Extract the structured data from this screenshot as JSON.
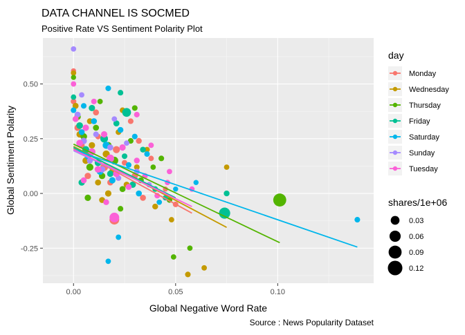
{
  "chart_data": {
    "type": "scatter",
    "title": "DATA CHANNEL IS SOCMED",
    "subtitle": "Positive Rate VS Sentiment Polarity Plot",
    "xlabel": "Global Negative Word Rate",
    "ylabel": "Global Sentiment Polarity",
    "caption": "Source : News Popularity Dataset",
    "xlim": [
      -0.015,
      0.147
    ],
    "ylim": [
      -0.41,
      0.71
    ],
    "x_ticks": [
      0.0,
      0.05,
      0.1
    ],
    "x_tick_labels": [
      "0.00",
      "0.05",
      "0.10"
    ],
    "y_ticks": [
      -0.25,
      0.0,
      0.25,
      0.5
    ],
    "y_tick_labels": [
      "-0.25",
      "0.00",
      "0.25",
      "0.50"
    ],
    "grid": true,
    "legend_position": "right",
    "color_legend": {
      "title": "day",
      "entries": [
        {
          "label": "Monday",
          "color": "#F8766D"
        },
        {
          "label": "Wednesday",
          "color": "#C49A00"
        },
        {
          "label": "Thursday",
          "color": "#53B400"
        },
        {
          "label": "Friday",
          "color": "#00C094"
        },
        {
          "label": "Saturday",
          "color": "#00B6EB"
        },
        {
          "label": "Sunday",
          "color": "#A58AFF"
        },
        {
          "label": "Tuesday",
          "color": "#FB61D7"
        }
      ]
    },
    "size_legend": {
      "title": "shares/1e+06",
      "entries": [
        {
          "label": "0.03",
          "value": 0.03
        },
        {
          "label": "0.06",
          "value": 0.06
        },
        {
          "label": "0.09",
          "value": 0.09
        },
        {
          "label": "0.12",
          "value": 0.12
        }
      ]
    },
    "trend_lines": [
      {
        "day": "Monday",
        "x": [
          0.0,
          0.058
        ],
        "y": [
          0.205,
          -0.09
        ]
      },
      {
        "day": "Wednesday",
        "x": [
          0.0,
          0.075
        ],
        "y": [
          0.215,
          -0.155
        ]
      },
      {
        "day": "Thursday",
        "x": [
          0.0,
          0.101
        ],
        "y": [
          0.225,
          -0.225
        ]
      },
      {
        "day": "Friday",
        "x": [
          0.0,
          0.05
        ],
        "y": [
          0.21,
          -0.02
        ]
      },
      {
        "day": "Saturday",
        "x": [
          0.0,
          0.139
        ],
        "y": [
          0.2,
          -0.245
        ]
      },
      {
        "day": "Sunday",
        "x": [
          0.0,
          0.045
        ],
        "y": [
          0.195,
          0.0
        ]
      },
      {
        "day": "Tuesday",
        "x": [
          0.0,
          0.058
        ],
        "y": [
          0.2,
          -0.06
        ]
      }
    ],
    "series": [
      {
        "day": "Monday",
        "points": [
          {
            "x": 0.0,
            "y": 0.56,
            "s": 0.004
          },
          {
            "x": 0.0,
            "y": 0.42,
            "s": 0.006
          },
          {
            "x": 0.002,
            "y": 0.3,
            "s": 0.01
          },
          {
            "x": 0.004,
            "y": 0.22,
            "s": 0.008
          },
          {
            "x": 0.008,
            "y": 0.18,
            "s": 0.012
          },
          {
            "x": 0.012,
            "y": 0.26,
            "s": 0.006
          },
          {
            "x": 0.015,
            "y": 0.12,
            "s": 0.02
          },
          {
            "x": 0.018,
            "y": 0.05,
            "s": 0.008
          },
          {
            "x": 0.021,
            "y": 0.2,
            "s": 0.015
          },
          {
            "x": 0.025,
            "y": 0.14,
            "s": 0.006
          },
          {
            "x": 0.03,
            "y": 0.08,
            "s": 0.01
          },
          {
            "x": 0.034,
            "y": -0.02,
            "s": 0.008
          },
          {
            "x": 0.038,
            "y": 0.16,
            "s": 0.005
          },
          {
            "x": 0.045,
            "y": 0.02,
            "s": 0.004
          },
          {
            "x": 0.02,
            "y": -0.12,
            "s": 0.04
          },
          {
            "x": 0.028,
            "y": 0.33,
            "s": 0.006
          },
          {
            "x": 0.05,
            "y": -0.05,
            "s": 0.006
          },
          {
            "x": 0.011,
            "y": 0.37,
            "s": 0.008
          },
          {
            "x": 0.007,
            "y": 0.08,
            "s": 0.01
          },
          {
            "x": 0.032,
            "y": 0.24,
            "s": 0.007
          }
        ]
      },
      {
        "day": "Wednesday",
        "points": [
          {
            "x": 0.0,
            "y": 0.55,
            "s": 0.005
          },
          {
            "x": 0.001,
            "y": 0.4,
            "s": 0.008
          },
          {
            "x": 0.003,
            "y": 0.27,
            "s": 0.01
          },
          {
            "x": 0.006,
            "y": 0.15,
            "s": 0.012
          },
          {
            "x": 0.009,
            "y": 0.22,
            "s": 0.01
          },
          {
            "x": 0.012,
            "y": 0.05,
            "s": 0.008
          },
          {
            "x": 0.016,
            "y": 0.18,
            "s": 0.015
          },
          {
            "x": 0.019,
            "y": 0.1,
            "s": 0.01
          },
          {
            "x": 0.022,
            "y": 0.28,
            "s": 0.006
          },
          {
            "x": 0.026,
            "y": 0.04,
            "s": 0.008
          },
          {
            "x": 0.031,
            "y": 0.12,
            "s": 0.006
          },
          {
            "x": 0.04,
            "y": -0.06,
            "s": 0.007
          },
          {
            "x": 0.048,
            "y": -0.12,
            "s": 0.005
          },
          {
            "x": 0.056,
            "y": -0.37,
            "s": 0.006
          },
          {
            "x": 0.064,
            "y": -0.34,
            "s": 0.005
          },
          {
            "x": 0.075,
            "y": 0.12,
            "s": 0.005
          },
          {
            "x": 0.014,
            "y": -0.03,
            "s": 0.008
          },
          {
            "x": 0.024,
            "y": 0.38,
            "s": 0.006
          },
          {
            "x": 0.008,
            "y": 0.33,
            "s": 0.007
          },
          {
            "x": 0.036,
            "y": 0.2,
            "s": 0.006
          },
          {
            "x": 0.017,
            "y": 0.0,
            "s": 0.01
          }
        ]
      },
      {
        "day": "Thursday",
        "points": [
          {
            "x": 0.0,
            "y": 0.53,
            "s": 0.004
          },
          {
            "x": 0.002,
            "y": 0.35,
            "s": 0.01
          },
          {
            "x": 0.005,
            "y": 0.26,
            "s": 0.012
          },
          {
            "x": 0.008,
            "y": 0.12,
            "s": 0.015
          },
          {
            "x": 0.011,
            "y": 0.3,
            "s": 0.008
          },
          {
            "x": 0.014,
            "y": 0.08,
            "s": 0.01
          },
          {
            "x": 0.017,
            "y": 0.22,
            "s": 0.012
          },
          {
            "x": 0.02,
            "y": 0.15,
            "s": 0.02
          },
          {
            "x": 0.024,
            "y": 0.02,
            "s": 0.008
          },
          {
            "x": 0.028,
            "y": 0.24,
            "s": 0.006
          },
          {
            "x": 0.033,
            "y": 0.06,
            "s": 0.007
          },
          {
            "x": 0.039,
            "y": 0.12,
            "s": 0.005
          },
          {
            "x": 0.047,
            "y": -0.03,
            "s": 0.006
          },
          {
            "x": 0.049,
            "y": -0.29,
            "s": 0.005
          },
          {
            "x": 0.057,
            "y": -0.25,
            "s": 0.005
          },
          {
            "x": 0.101,
            "y": -0.03,
            "s": 0.09
          },
          {
            "x": 0.007,
            "y": -0.02,
            "s": 0.01
          },
          {
            "x": 0.03,
            "y": 0.39,
            "s": 0.006
          },
          {
            "x": 0.013,
            "y": 0.42,
            "s": 0.005
          },
          {
            "x": 0.043,
            "y": 0.16,
            "s": 0.006
          },
          {
            "x": 0.023,
            "y": -0.07,
            "s": 0.006
          }
        ]
      },
      {
        "day": "Friday",
        "points": [
          {
            "x": 0.0,
            "y": 0.44,
            "s": 0.005
          },
          {
            "x": 0.003,
            "y": 0.31,
            "s": 0.012
          },
          {
            "x": 0.006,
            "y": 0.2,
            "s": 0.015
          },
          {
            "x": 0.009,
            "y": 0.39,
            "s": 0.01
          },
          {
            "x": 0.012,
            "y": 0.14,
            "s": 0.012
          },
          {
            "x": 0.015,
            "y": 0.25,
            "s": 0.02
          },
          {
            "x": 0.018,
            "y": 0.09,
            "s": 0.01
          },
          {
            "x": 0.021,
            "y": 0.32,
            "s": 0.008
          },
          {
            "x": 0.025,
            "y": 0.17,
            "s": 0.006
          },
          {
            "x": 0.029,
            "y": 0.04,
            "s": 0.01
          },
          {
            "x": 0.034,
            "y": 0.2,
            "s": 0.007
          },
          {
            "x": 0.04,
            "y": 0.02,
            "s": 0.006
          },
          {
            "x": 0.045,
            "y": -0.02,
            "s": 0.005
          },
          {
            "x": 0.074,
            "y": -0.09,
            "s": 0.06
          },
          {
            "x": 0.075,
            "y": 0.0,
            "s": 0.007
          },
          {
            "x": 0.023,
            "y": 0.46,
            "s": 0.006
          },
          {
            "x": 0.004,
            "y": 0.05,
            "s": 0.01
          },
          {
            "x": 0.026,
            "y": 0.37,
            "s": 0.03
          }
        ]
      },
      {
        "day": "Saturday",
        "points": [
          {
            "x": 0.0,
            "y": 0.38,
            "s": 0.006
          },
          {
            "x": 0.004,
            "y": 0.28,
            "s": 0.008
          },
          {
            "x": 0.007,
            "y": 0.17,
            "s": 0.01
          },
          {
            "x": 0.01,
            "y": 0.33,
            "s": 0.008
          },
          {
            "x": 0.013,
            "y": 0.1,
            "s": 0.012
          },
          {
            "x": 0.016,
            "y": 0.22,
            "s": 0.015
          },
          {
            "x": 0.019,
            "y": 0.06,
            "s": 0.01
          },
          {
            "x": 0.023,
            "y": 0.29,
            "s": 0.007
          },
          {
            "x": 0.027,
            "y": 0.13,
            "s": 0.006
          },
          {
            "x": 0.032,
            "y": 0.0,
            "s": 0.008
          },
          {
            "x": 0.036,
            "y": 0.18,
            "s": 0.006
          },
          {
            "x": 0.042,
            "y": -0.04,
            "s": 0.005
          },
          {
            "x": 0.05,
            "y": 0.02,
            "s": 0.004
          },
          {
            "x": 0.06,
            "y": 0.05,
            "s": 0.004
          },
          {
            "x": 0.139,
            "y": -0.12,
            "s": 0.006
          },
          {
            "x": 0.017,
            "y": -0.31,
            "s": 0.005
          },
          {
            "x": 0.017,
            "y": 0.48,
            "s": 0.006
          },
          {
            "x": 0.022,
            "y": -0.2,
            "s": 0.005
          },
          {
            "x": 0.005,
            "y": 0.4,
            "s": 0.006
          },
          {
            "x": 0.03,
            "y": 0.26,
            "s": 0.006
          }
        ]
      },
      {
        "day": "Sunday",
        "points": [
          {
            "x": 0.0,
            "y": 0.66,
            "s": 0.005
          },
          {
            "x": 0.002,
            "y": 0.36,
            "s": 0.008
          },
          {
            "x": 0.005,
            "y": 0.24,
            "s": 0.01
          },
          {
            "x": 0.008,
            "y": 0.15,
            "s": 0.008
          },
          {
            "x": 0.011,
            "y": 0.27,
            "s": 0.006
          },
          {
            "x": 0.014,
            "y": 0.11,
            "s": 0.01
          },
          {
            "x": 0.018,
            "y": 0.21,
            "s": 0.008
          },
          {
            "x": 0.022,
            "y": 0.07,
            "s": 0.006
          },
          {
            "x": 0.026,
            "y": 0.23,
            "s": 0.005
          },
          {
            "x": 0.031,
            "y": 0.1,
            "s": 0.006
          },
          {
            "x": 0.037,
            "y": 0.04,
            "s": 0.005
          },
          {
            "x": 0.004,
            "y": 0.45,
            "s": 0.005
          },
          {
            "x": 0.02,
            "y": 0.34,
            "s": 0.005
          }
        ]
      },
      {
        "day": "Tuesday",
        "points": [
          {
            "x": 0.0,
            "y": 0.5,
            "s": 0.005
          },
          {
            "x": 0.001,
            "y": 0.34,
            "s": 0.008
          },
          {
            "x": 0.003,
            "y": 0.23,
            "s": 0.012
          },
          {
            "x": 0.006,
            "y": 0.3,
            "s": 0.01
          },
          {
            "x": 0.009,
            "y": 0.19,
            "s": 0.015
          },
          {
            "x": 0.012,
            "y": 0.11,
            "s": 0.012
          },
          {
            "x": 0.015,
            "y": 0.27,
            "s": 0.01
          },
          {
            "x": 0.018,
            "y": 0.16,
            "s": 0.02
          },
          {
            "x": 0.021,
            "y": 0.09,
            "s": 0.012
          },
          {
            "x": 0.024,
            "y": 0.21,
            "s": 0.01
          },
          {
            "x": 0.027,
            "y": 0.03,
            "s": 0.008
          },
          {
            "x": 0.031,
            "y": 0.15,
            "s": 0.007
          },
          {
            "x": 0.035,
            "y": 0.08,
            "s": 0.006
          },
          {
            "x": 0.041,
            "y": -0.01,
            "s": 0.006
          },
          {
            "x": 0.046,
            "y": 0.05,
            "s": 0.005
          },
          {
            "x": 0.02,
            "y": -0.11,
            "s": 0.04
          },
          {
            "x": 0.031,
            "y": 0.36,
            "s": 0.006
          },
          {
            "x": 0.01,
            "y": 0.42,
            "s": 0.006
          },
          {
            "x": 0.058,
            "y": 0.02,
            "s": 0.005
          },
          {
            "x": 0.005,
            "y": 0.06,
            "s": 0.008
          },
          {
            "x": 0.016,
            "y": -0.04,
            "s": 0.007
          },
          {
            "x": 0.038,
            "y": 0.22,
            "s": 0.005
          },
          {
            "x": 0.047,
            "y": 0.1,
            "s": 0.005
          }
        ]
      }
    ]
  }
}
